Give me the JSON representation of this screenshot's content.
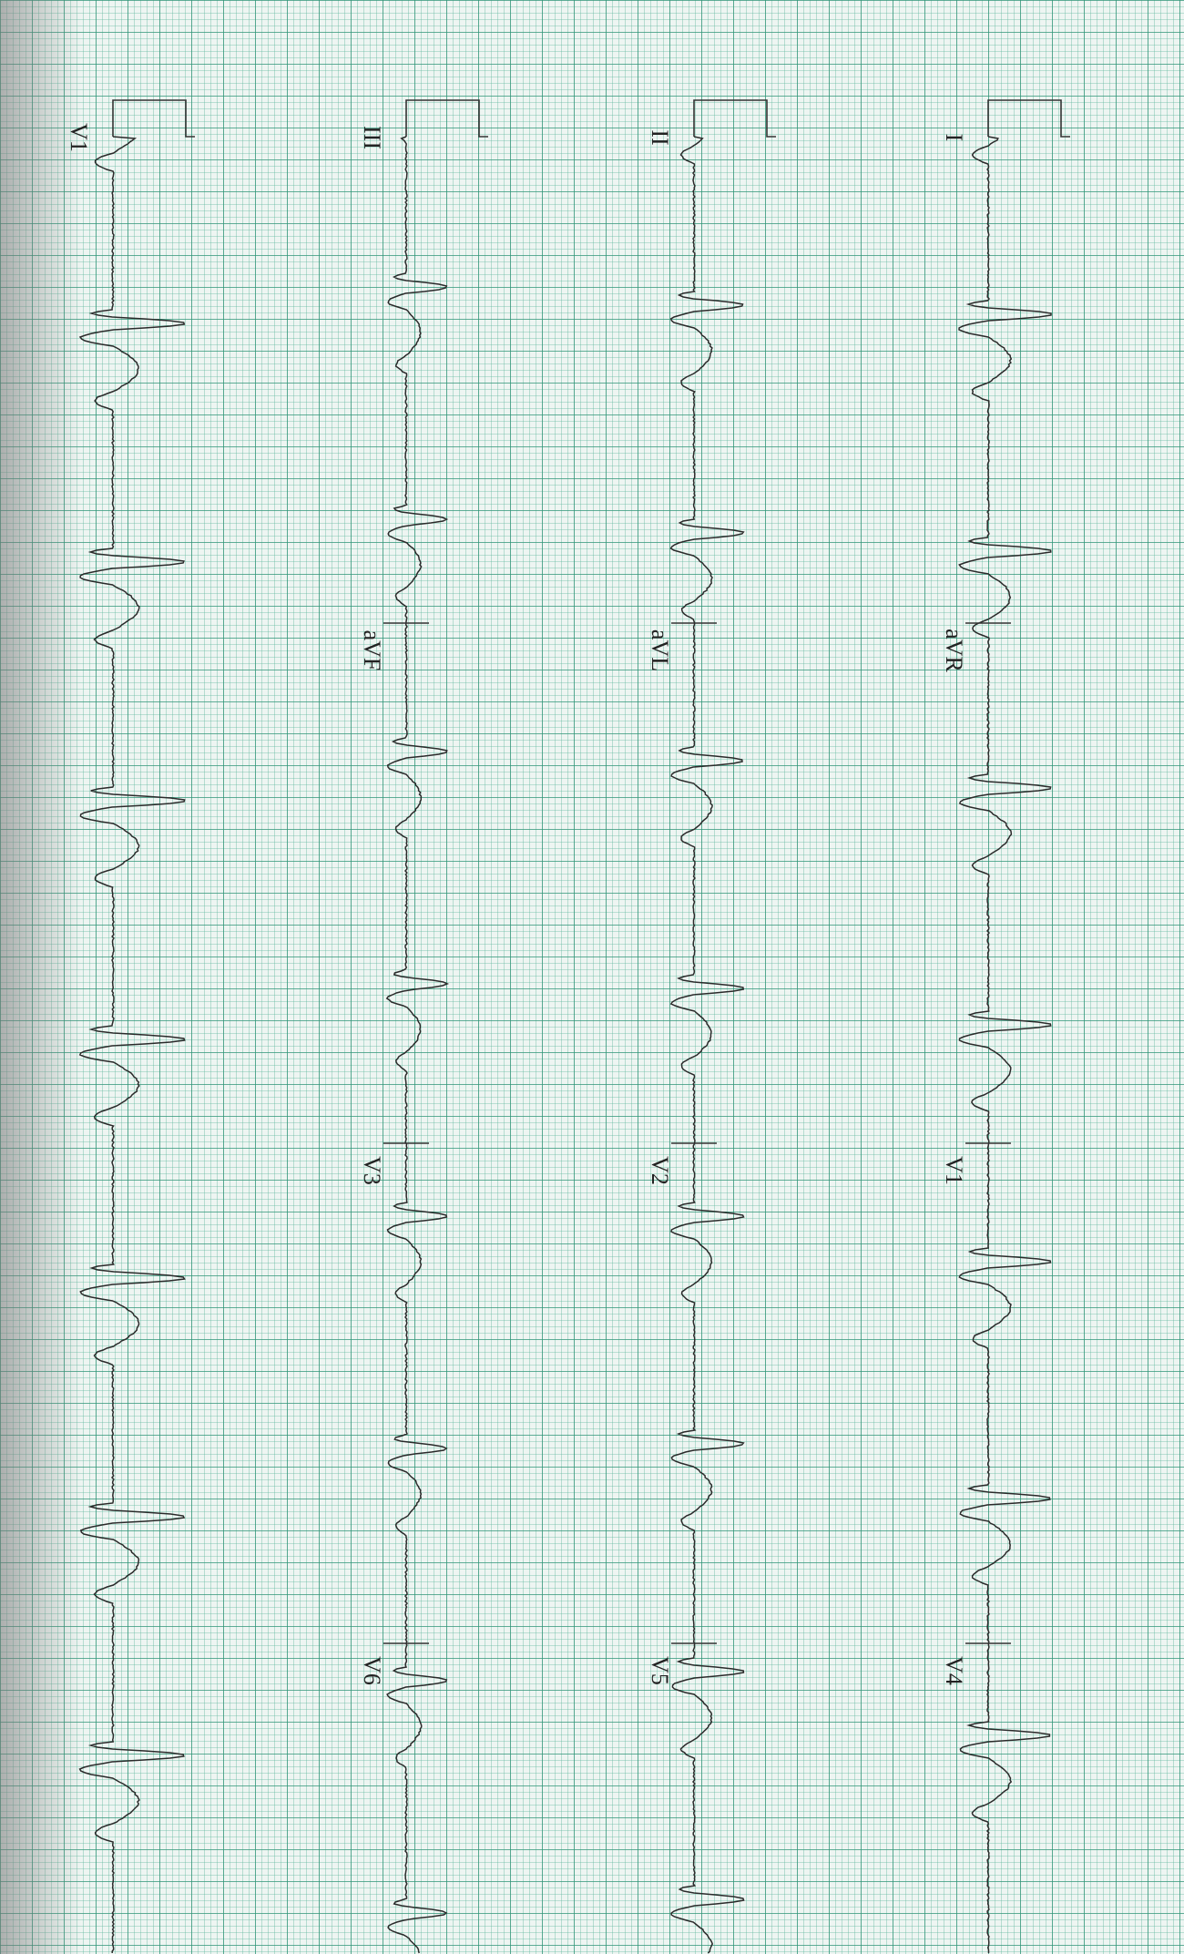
{
  "strips": [
    {
      "labels": [
        "I",
        "aVR",
        "V1",
        "V4"
      ]
    },
    {
      "labels": [
        "II",
        "aVL",
        "V2",
        "V5"
      ]
    },
    {
      "labels": [
        "III",
        "aVF",
        "V3",
        "V6"
      ]
    },
    {
      "labels": [
        "V1"
      ]
    }
  ]
}
